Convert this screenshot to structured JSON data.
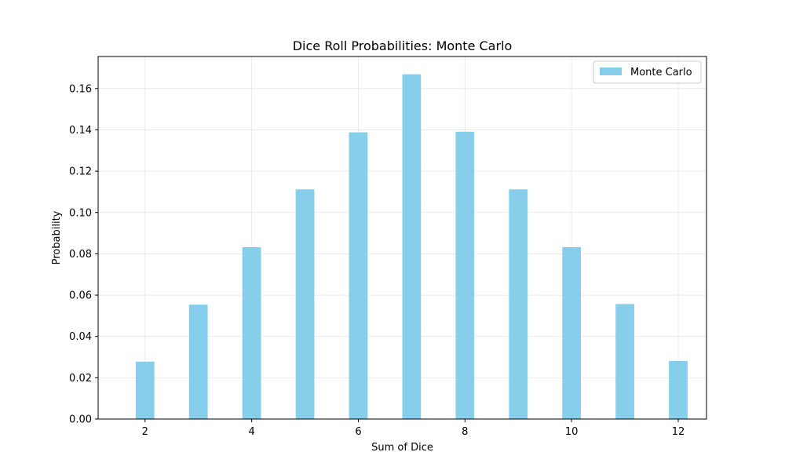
{
  "chart_data": {
    "type": "bar",
    "title": "Dice Roll Probabilities: Monte Carlo",
    "xlabel": "Sum of Dice",
    "ylabel": "Probability",
    "x": [
      2,
      3,
      4,
      5,
      6,
      7,
      8,
      9,
      10,
      11,
      12
    ],
    "series": [
      {
        "name": "Monte Carlo",
        "values": [
          0.0278,
          0.0554,
          0.0832,
          0.1112,
          0.1388,
          0.1669,
          0.1391,
          0.1112,
          0.0832,
          0.0557,
          0.0281
        ],
        "color": "#87CEEB"
      }
    ],
    "xlim": [
      1.12,
      12.53
    ],
    "ylim": [
      0,
      0.1755
    ],
    "xticks": [
      2,
      4,
      6,
      8,
      10,
      12
    ],
    "xtick_labels": [
      "2",
      "4",
      "6",
      "8",
      "10",
      "12"
    ],
    "yticks": [
      0,
      0.02,
      0.04,
      0.06,
      0.08,
      0.1,
      0.12,
      0.14,
      0.16
    ],
    "ytick_labels": [
      "0.00",
      "0.02",
      "0.04",
      "0.06",
      "0.08",
      "0.10",
      "0.12",
      "0.14",
      "0.16"
    ],
    "grid": true,
    "legend_position": "top-right"
  }
}
